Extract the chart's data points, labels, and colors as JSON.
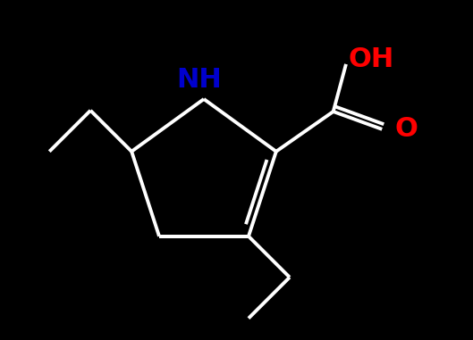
{
  "background_color": "#000000",
  "bond_color": "#ffffff",
  "N_color": "#0000cd",
  "O_color": "#ff0000",
  "bond_width": 2.8,
  "font_size_NH": 22,
  "font_size_OH": 22,
  "font_size_O": 22,
  "NH_label": "NH",
  "OH_label": "OH",
  "O_label": "O",
  "figsize": [
    5.29,
    3.81
  ],
  "dpi": 100
}
